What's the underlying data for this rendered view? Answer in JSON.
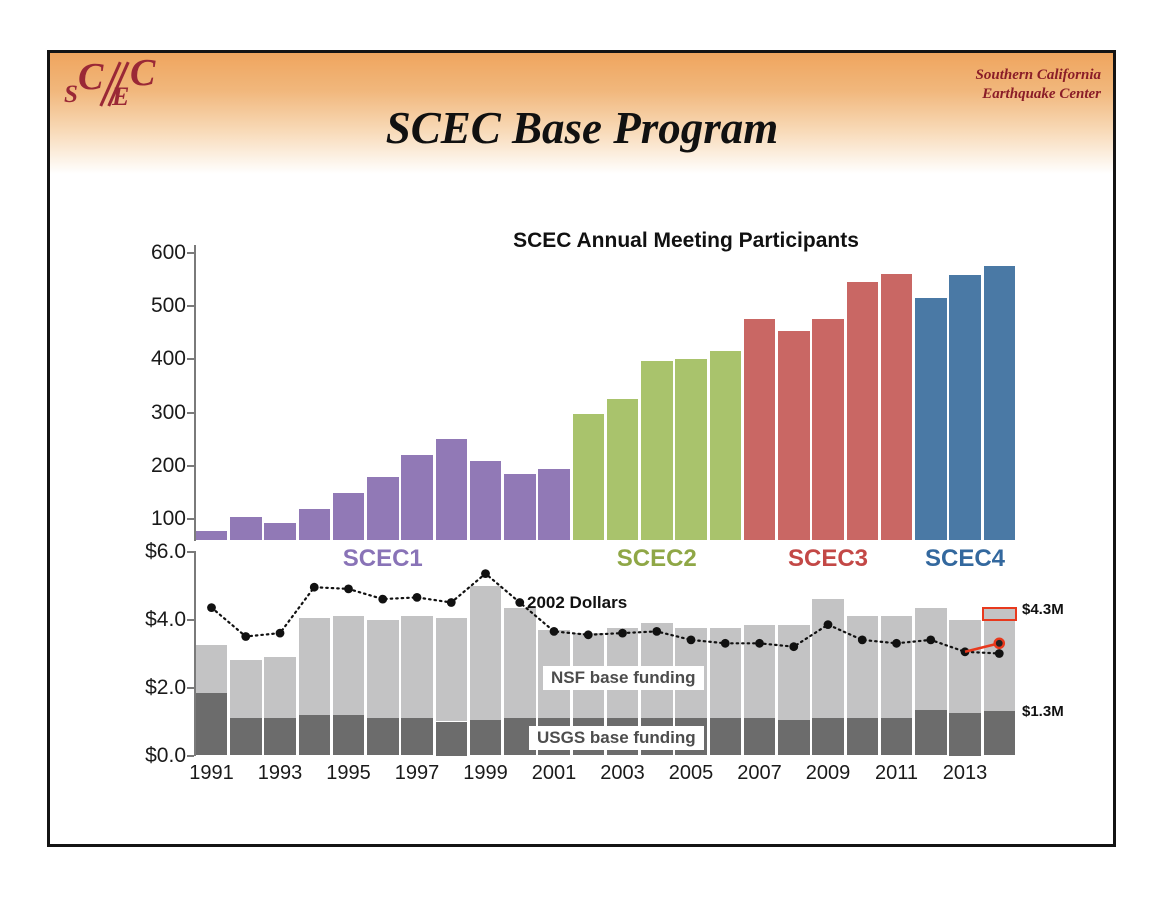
{
  "slide": {
    "logo_chars": [
      "S",
      "C",
      "E",
      "C"
    ],
    "org_line1": "Southern California",
    "org_line2": "Earthquake Center",
    "title": "SCEC Base Program"
  },
  "colors": {
    "logo_red": "#9a2836",
    "header_orange": "#efa55e",
    "scec1_purple": "#9179b6",
    "scec2_green": "#a9c36c",
    "scec3_red": "#c96764",
    "scec4_blue": "#4a79a5",
    "usgs_dark_gray": "#6c6c6c",
    "nsf_light_gray": "#c3c3c4",
    "projection_red": "#e8391d"
  },
  "chart_data": [
    {
      "type": "bar",
      "title": "SCEC Annual Meeting Participants",
      "categories": [
        1991,
        1992,
        1993,
        1994,
        1995,
        1996,
        1997,
        1998,
        1999,
        2000,
        2001,
        2002,
        2003,
        2004,
        2005,
        2006,
        2007,
        2008,
        2009,
        2010,
        2011,
        2012,
        2013,
        2014
      ],
      "values": [
        78,
        105,
        93,
        120,
        150,
        180,
        220,
        250,
        210,
        185,
        195,
        297,
        325,
        398,
        400,
        415,
        476,
        453,
        476,
        545,
        560,
        516,
        558,
        575
      ],
      "yticks": [
        100,
        200,
        300,
        400,
        500,
        600
      ],
      "ylim": [
        60,
        615
      ],
      "xlabel": "",
      "ylabel": "",
      "grid": false,
      "phases": [
        {
          "label": "SCEC1",
          "start_year": 1991,
          "end_year": 2001,
          "bar_color": "#9179b6",
          "label_color": "#8973b7"
        },
        {
          "label": "SCEC2",
          "start_year": 2002,
          "end_year": 2006,
          "bar_color": "#a9c36c",
          "label_color": "#8fa746"
        },
        {
          "label": "SCEC3",
          "start_year": 2007,
          "end_year": 2011,
          "bar_color": "#c96764",
          "label_color": "#c34846"
        },
        {
          "label": "SCEC4",
          "start_year": 2012,
          "end_year": 2014,
          "bar_color": "#4a79a5",
          "label_color": "#33689e"
        }
      ]
    },
    {
      "type": "stacked-bar-line",
      "title": "",
      "categories": [
        1991,
        1992,
        1993,
        1994,
        1995,
        1996,
        1997,
        1998,
        1999,
        2000,
        2001,
        2002,
        2003,
        2004,
        2005,
        2006,
        2007,
        2008,
        2009,
        2010,
        2011,
        2012,
        2013,
        2014
      ],
      "series": [
        {
          "name": "USGS base funding",
          "color": "#6c6c6c",
          "values": [
            1.85,
            1.1,
            1.1,
            1.2,
            1.2,
            1.1,
            1.1,
            1.0,
            1.05,
            1.1,
            1.1,
            1.1,
            1.1,
            1.1,
            1.1,
            1.1,
            1.1,
            1.05,
            1.1,
            1.1,
            1.1,
            1.35,
            1.25,
            1.3
          ]
        },
        {
          "name": "NSF base funding",
          "color": "#c3c3c4",
          "values": [
            1.4,
            1.7,
            1.8,
            2.85,
            2.9,
            2.9,
            3.0,
            3.05,
            3.95,
            3.25,
            2.6,
            2.5,
            2.65,
            2.8,
            2.65,
            2.65,
            2.75,
            2.8,
            3.5,
            3.0,
            3.0,
            3.0,
            2.75,
            2.7
          ]
        }
      ],
      "line": {
        "name": "2002 Dollars",
        "color": "#111111",
        "values": [
          4.35,
          3.5,
          3.6,
          4.95,
          4.9,
          4.6,
          4.65,
          4.5,
          5.35,
          4.5,
          3.65,
          3.55,
          3.6,
          3.65,
          3.4,
          3.3,
          3.3,
          3.2,
          3.85,
          3.4,
          3.3,
          3.4,
          3.05,
          3.0
        ]
      },
      "projection": {
        "color": "#e8391d",
        "from_year": 2013,
        "from_value": 3.05,
        "to_year": 2014,
        "to_value": 3.3
      },
      "highlight_box": {
        "year": 2014,
        "from_value": 4.0,
        "to_value": 4.3,
        "border_color": "#e8391d"
      },
      "annotations": [
        {
          "text": "$4.3M",
          "value": 4.3
        },
        {
          "text": "$1.3M",
          "value": 1.3
        }
      ],
      "yticks": [
        {
          "label": "$0.0",
          "value": 0
        },
        {
          "label": "$2.0",
          "value": 2
        },
        {
          "label": "$4.0",
          "value": 4
        },
        {
          "label": "$6.0",
          "value": 6
        }
      ],
      "xticks": [
        1991,
        1993,
        1995,
        1997,
        1999,
        2001,
        2003,
        2005,
        2007,
        2009,
        2011,
        2013
      ],
      "ylim": [
        0,
        6
      ],
      "grid": false,
      "legend_position": "inside"
    }
  ]
}
